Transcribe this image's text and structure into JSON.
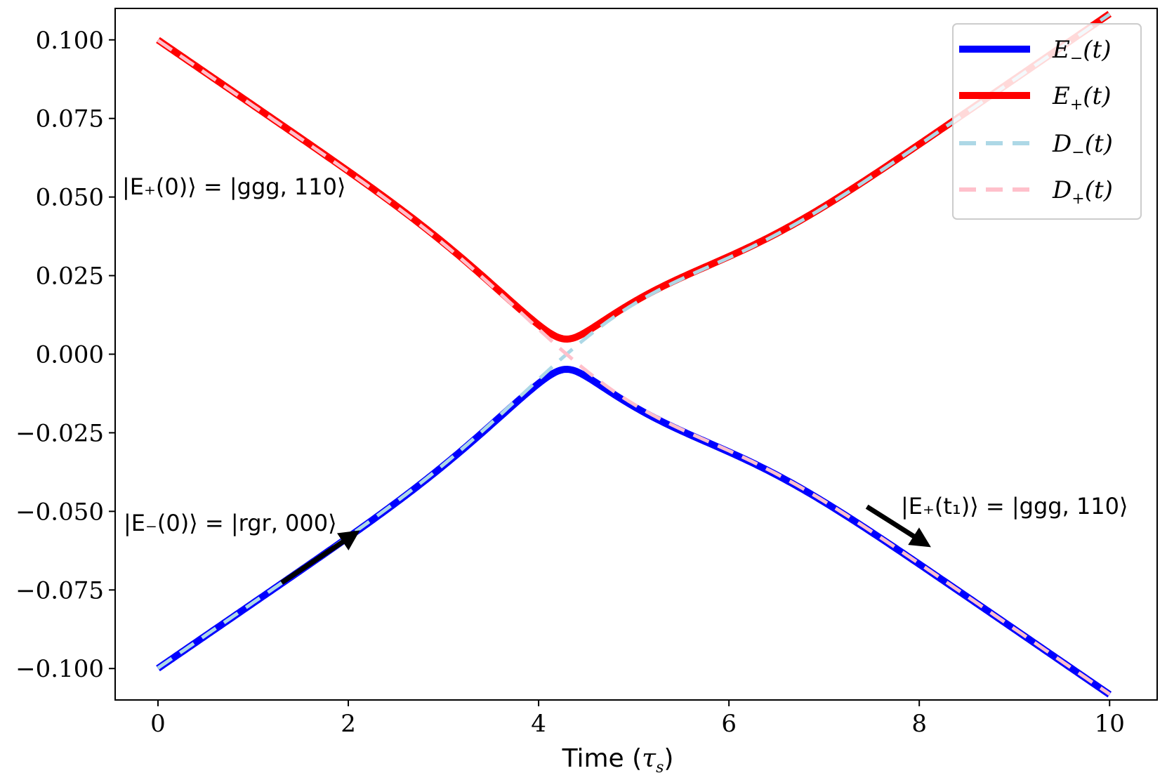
{
  "chart_data": {
    "type": "line",
    "title": "",
    "xlabel": "Time (τs)",
    "xlabel_main": "Time (",
    "xlabel_sym": "τ",
    "xlabel_sub": "s",
    "xlabel_close": ")",
    "ylabel": "",
    "xlim": [
      -0.45,
      10.5
    ],
    "ylim": [
      -0.11,
      0.11
    ],
    "grid": false,
    "legend_position": "top-right",
    "x_ticks": [
      0,
      2,
      4,
      6,
      8,
      10
    ],
    "x_tick_labels": [
      "0",
      "2",
      "4",
      "6",
      "8",
      "10"
    ],
    "y_ticks": [
      0.1,
      0.075,
      0.05,
      0.025,
      0.0,
      -0.025,
      -0.05,
      -0.075,
      -0.1
    ],
    "y_tick_labels": [
      "0.100",
      "0.075",
      "0.050",
      "0.025",
      "0.000",
      "−0.025",
      "−0.050",
      "−0.075",
      "−0.100"
    ],
    "crossing": {
      "t0": 4.8,
      "slope": 0.0208,
      "gap": 0.0048,
      "corr_scale": 0.012,
      "corr_width": 1.4
    },
    "series": [
      {
        "name": "E_-(t)",
        "label_main": "E",
        "label_sub": "−",
        "label_arg": "(t)",
        "color": "#0000ff",
        "style": "solid",
        "kind": "adiabatic_lower"
      },
      {
        "name": "E_+(t)",
        "label_main": "E",
        "label_sub": "+",
        "label_arg": "(t)",
        "color": "#ff0000",
        "style": "solid",
        "kind": "adiabatic_upper"
      },
      {
        "name": "D_-(t)",
        "label_main": "D",
        "label_sub": "−",
        "label_arg": "(t)",
        "color": "#add8e6",
        "style": "dashed",
        "kind": "diabatic_rising"
      },
      {
        "name": "D_+(t)",
        "label_main": "D",
        "label_sub": "+",
        "label_arg": "(t)",
        "color": "#ffc0cb",
        "style": "dashed",
        "kind": "diabatic_falling"
      }
    ],
    "annotations": [
      {
        "text": "|E₊(0)⟩ = |ggg, 110⟩",
        "arrow": false
      },
      {
        "text": "|E₋(0)⟩ = |rgr, 000⟩",
        "arrow": true,
        "arrow_from": [
          1.3,
          -0.0727
        ],
        "arrow_to": [
          2.05,
          -0.0575
        ]
      },
      {
        "text": "|E₊(t₁)⟩ = |ggg, 110⟩",
        "arrow": true,
        "arrow_from": [
          7.45,
          -0.0485
        ],
        "arrow_to": [
          8.05,
          -0.06
        ]
      }
    ]
  }
}
